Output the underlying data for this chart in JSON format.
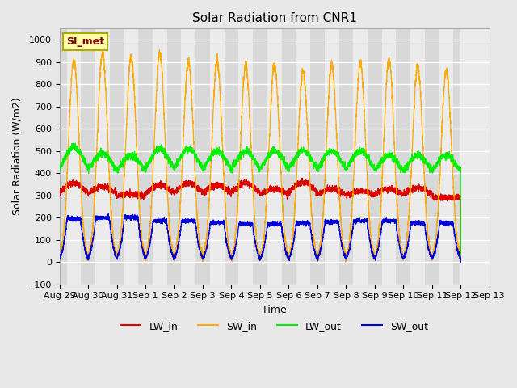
{
  "title": "Solar Radiation from CNR1",
  "xlabel": "Time",
  "ylabel": "Solar Radiation (W/m2)",
  "ylim": [
    -100,
    1050
  ],
  "xlim": [
    0,
    14
  ],
  "plot_bg_color": "#e8e8e8",
  "grid_color": "white",
  "stripe_light": "#ebebeb",
  "stripe_dark": "#d8d8d8",
  "legend_label": "SI_met",
  "series_colors": {
    "LW_in": "#dd0000",
    "SW_in": "#ffaa00",
    "LW_out": "#00ee00",
    "SW_out": "#0000dd"
  },
  "xtick_labels": [
    "Aug 29",
    "Aug 30",
    "Aug 31",
    "Sep 1",
    "Sep 2",
    "Sep 3",
    "Sep 4",
    "Sep 5",
    "Sep 6",
    "Sep 7",
    "Sep 8",
    "Sep 9",
    "Sep 10",
    "Sep 11",
    "Sep 12",
    "Sep 13"
  ],
  "ytick_positions": [
    -100,
    0,
    100,
    200,
    300,
    400,
    500,
    600,
    700,
    800,
    900,
    1000
  ],
  "n_days": 14,
  "pts_per_day": 288,
  "SW_in_peaks": [
    910,
    940,
    920,
    940,
    900,
    900,
    885,
    885,
    855,
    890,
    895,
    905,
    880,
    860
  ],
  "LW_out_day_peaks": [
    520,
    490,
    480,
    510,
    510,
    500,
    500,
    500,
    500,
    500,
    500,
    480,
    480,
    480
  ],
  "LW_out_night": 385,
  "LW_in_day_peaks": [
    355,
    340,
    305,
    345,
    355,
    345,
    355,
    330,
    360,
    330,
    320,
    330,
    335,
    290
  ],
  "LW_in_night": 290,
  "SW_out_peaks": [
    195,
    200,
    200,
    185,
    185,
    175,
    170,
    170,
    175,
    180,
    185,
    185,
    175,
    175
  ]
}
